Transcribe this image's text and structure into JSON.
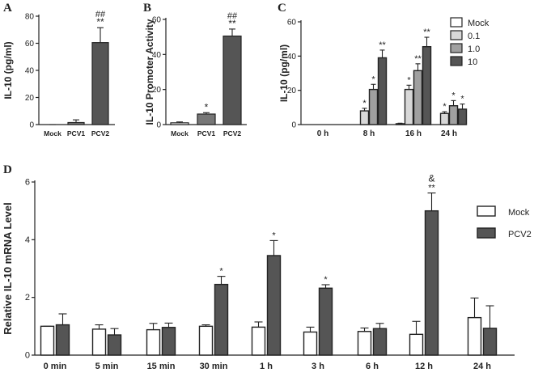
{
  "chart_data": [
    {
      "panel": "A",
      "type": "bar",
      "categories": [
        "Mock",
        "PCV1",
        "PCV2"
      ],
      "values": [
        0,
        1.5,
        60.5
      ],
      "errors": [
        0,
        2,
        11
      ],
      "annotations": [
        "",
        "",
        "**"
      ],
      "annotations2": [
        "",
        "",
        "##"
      ],
      "ylabel": "IL-10 (pg/ml)",
      "ylim": [
        0,
        80
      ],
      "yticks": [
        "0",
        "20",
        "40",
        "60",
        "80"
      ],
      "colors": [
        "#ffffff",
        "#777777",
        "#555555"
      ]
    },
    {
      "panel": "B",
      "type": "bar",
      "categories": [
        "Mock",
        "PCV1",
        "PCV2"
      ],
      "values": [
        1,
        6,
        50.5
      ],
      "errors": [
        0.5,
        0.8,
        4
      ],
      "annotations": [
        "",
        "*",
        "**"
      ],
      "annotations2": [
        "",
        "",
        "##"
      ],
      "ylabel": "IL-10 Promoter Activity",
      "ylim": [
        0,
        60
      ],
      "yticks": [
        "0",
        "20",
        "40",
        "60"
      ],
      "colors": [
        "#ffffff",
        "#777777",
        "#555555"
      ]
    },
    {
      "panel": "C",
      "type": "bar",
      "categories": [
        "0 h",
        "8 h",
        "16 h",
        "24 h"
      ],
      "series": [
        {
          "name": "Mock",
          "values": [
            0,
            0,
            0.5,
            0
          ],
          "errors": [
            0,
            0,
            0.3,
            0
          ],
          "annotations": [
            "",
            "",
            "",
            ""
          ],
          "color": "#ffffff"
        },
        {
          "name": "0.1",
          "values": [
            0,
            8,
            20.5,
            6.5
          ],
          "errors": [
            0,
            1.5,
            2.5,
            1
          ],
          "annotations": [
            "",
            "*",
            "*",
            "*"
          ],
          "color": "#d8d8d8"
        },
        {
          "name": "1.0",
          "values": [
            0,
            20.5,
            31.5,
            11
          ],
          "errors": [
            0,
            3,
            4,
            3
          ],
          "annotations": [
            "",
            "*",
            "**",
            "*"
          ],
          "color": "#a0a0a0"
        },
        {
          "name": "10",
          "values": [
            0,
            39,
            45.5,
            9
          ],
          "errors": [
            0,
            4.5,
            5.5,
            3
          ],
          "annotations": [
            "",
            "**",
            "**",
            "*"
          ],
          "color": "#555555"
        }
      ],
      "ylabel": "IL-10 (pg/ml)",
      "ylim": [
        0,
        60
      ],
      "yticks": [
        "0",
        "20",
        "40",
        "60"
      ],
      "legend": "top-right"
    },
    {
      "panel": "D",
      "type": "bar",
      "categories": [
        "0 min",
        "5 min",
        "15 min",
        "30 min",
        "1 h",
        "3 h",
        "6 h",
        "12 h",
        "24 h"
      ],
      "series": [
        {
          "name": "Mock",
          "values": [
            1.0,
            0.9,
            0.88,
            1.0,
            0.97,
            0.8,
            0.82,
            0.72,
            1.3
          ],
          "errors": [
            0,
            0.15,
            0.22,
            0.05,
            0.18,
            0.17,
            0.12,
            0.45,
            0.68
          ],
          "annotations": [
            "",
            "",
            "",
            "",
            "",
            "",
            "",
            "",
            ""
          ],
          "color": "#ffffff"
        },
        {
          "name": "PCV2",
          "values": [
            1.05,
            0.7,
            0.96,
            2.45,
            3.45,
            2.32,
            0.92,
            5.0,
            0.93
          ],
          "errors": [
            0.38,
            0.22,
            0.15,
            0.28,
            0.52,
            0.12,
            0.18,
            0.62,
            0.78
          ],
          "annotations": [
            "",
            "",
            "",
            "*",
            "*",
            "*",
            "",
            "**",
            ""
          ],
          "annotations2": [
            "",
            "",
            "",
            "",
            "",
            "",
            "",
            "&",
            ""
          ],
          "color": "#555555"
        }
      ],
      "ylabel": "Relative IL-10 mRNA Level",
      "ylim": [
        0,
        6
      ],
      "yticks": [
        "0",
        "2",
        "4",
        "6"
      ],
      "legend": "right"
    }
  ]
}
